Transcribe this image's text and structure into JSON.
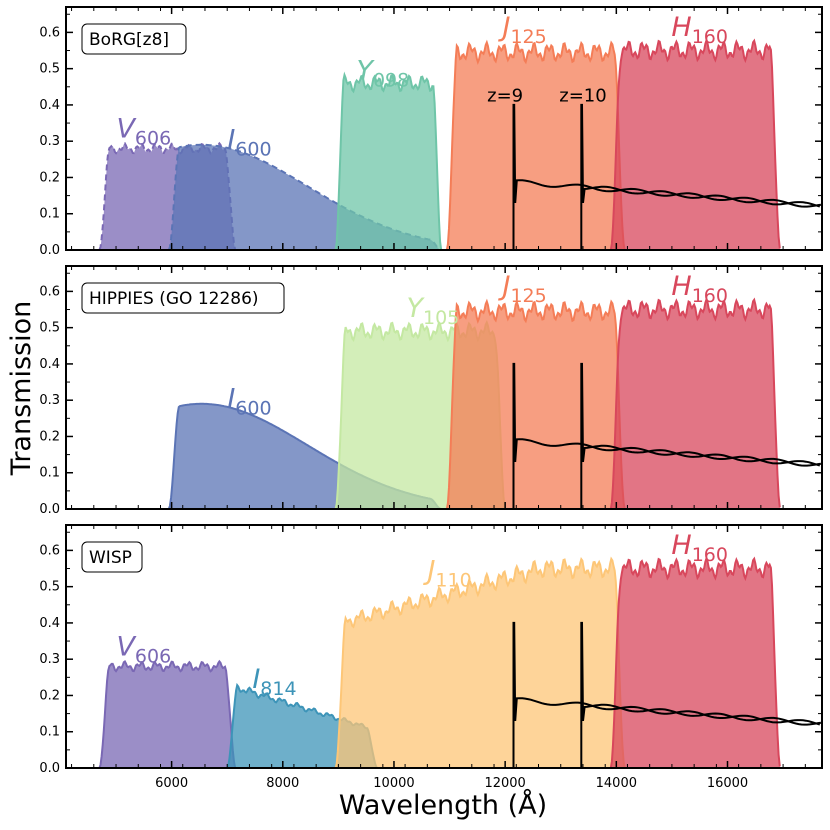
{
  "figure": {
    "xlabel": "Wavelength (Å)",
    "ylabel": "Transmission"
  },
  "colors": {
    "V606": "#7a68b4",
    "I600": "#5b74b5",
    "I814": "#3d94b8",
    "Y098": "#6fc5a8",
    "Y105": "#c4e8a2",
    "J125": "#f47d57",
    "J110": "#fdc677",
    "H160": "#d8475c",
    "spectrum": "#000000"
  },
  "chart_data": [
    {
      "type": "area",
      "panel_label": "BoRG[z8]",
      "xlim": [
        4100,
        17700
      ],
      "ylim": [
        0,
        0.67
      ],
      "xticks": [
        6000,
        8000,
        10000,
        12000,
        14000,
        16000
      ],
      "yticks": [
        0.0,
        0.1,
        0.2,
        0.3,
        0.4,
        0.5,
        0.6
      ],
      "series": [
        {
          "name": "V606",
          "range": [
            4700,
            7150
          ],
          "peak": 0.28,
          "shape": "flat",
          "dashed": true
        },
        {
          "name": "I600",
          "range": [
            5950,
            10850
          ],
          "peak": 0.29,
          "shape": "broad",
          "dashed": true
        },
        {
          "name": "Y098",
          "range": [
            8950,
            10850
          ],
          "peak": 0.46,
          "shape": "flat"
        },
        {
          "name": "J125",
          "range": [
            10950,
            14150
          ],
          "peak": 0.545,
          "shape": "flat"
        },
        {
          "name": "H160",
          "range": [
            13900,
            16950
          ],
          "peak": 0.55,
          "shape": "flat"
        }
      ],
      "labels": [
        {
          "key": "V606",
          "base": "V",
          "sub": "606",
          "x": 5500,
          "y": 0.31
        },
        {
          "key": "I600",
          "base": "I",
          "sub": "600",
          "x": 7400,
          "y": 0.28
        },
        {
          "key": "Y098",
          "base": "Y",
          "sub": "098",
          "x": 9800,
          "y": 0.47
        },
        {
          "key": "J125",
          "base": "J",
          "sub": "125",
          "x": 12350,
          "y": 0.59
        },
        {
          "key": "H160",
          "base": "H",
          "sub": "160",
          "x": 15500,
          "y": 0.59
        }
      ],
      "redshift_labels": [
        {
          "text": "z=9",
          "x": 12000,
          "y": 0.41
        },
        {
          "text": "z=10",
          "x": 13400,
          "y": 0.41
        }
      ]
    },
    {
      "type": "area",
      "panel_label": "HIPPIES (GO 12286)",
      "xlim": [
        4100,
        17700
      ],
      "ylim": [
        0,
        0.67
      ],
      "xticks": [
        6000,
        8000,
        10000,
        12000,
        14000,
        16000
      ],
      "yticks": [
        0.0,
        0.1,
        0.2,
        0.3,
        0.4,
        0.5,
        0.6
      ],
      "series": [
        {
          "name": "I600",
          "range": [
            5950,
            10850
          ],
          "peak": 0.29,
          "shape": "broad"
        },
        {
          "name": "Y105",
          "range": [
            8950,
            12000
          ],
          "peak": 0.49,
          "shape": "flat"
        },
        {
          "name": "J125",
          "range": [
            10950,
            14150
          ],
          "peak": 0.545,
          "shape": "flat"
        },
        {
          "name": "H160",
          "range": [
            13900,
            16950
          ],
          "peak": 0.55,
          "shape": "flat"
        }
      ],
      "labels": [
        {
          "key": "I600",
          "base": "I",
          "sub": "600",
          "x": 7400,
          "y": 0.28
        },
        {
          "key": "Y105",
          "base": "Y",
          "sub": "105",
          "x": 10700,
          "y": 0.53
        },
        {
          "key": "J125",
          "base": "J",
          "sub": "125",
          "x": 12350,
          "y": 0.59
        },
        {
          "key": "H160",
          "base": "H",
          "sub": "160",
          "x": 15500,
          "y": 0.59
        }
      ],
      "redshift_labels": []
    },
    {
      "type": "area",
      "panel_label": "WISP",
      "xlim": [
        4100,
        17700
      ],
      "ylim": [
        0,
        0.67
      ],
      "xticks": [
        6000,
        8000,
        10000,
        12000,
        14000,
        16000
      ],
      "yticks": [
        0.0,
        0.1,
        0.2,
        0.3,
        0.4,
        0.5,
        0.6
      ],
      "series": [
        {
          "name": "V606",
          "range": [
            4700,
            7150
          ],
          "peak": 0.28,
          "shape": "flat"
        },
        {
          "name": "I814",
          "range": [
            7000,
            9700
          ],
          "peak": 0.23,
          "shape": "decline"
        },
        {
          "name": "J110",
          "range": [
            8950,
            14150
          ],
          "peak": 0.55,
          "shape": "rising"
        },
        {
          "name": "H160",
          "range": [
            13900,
            16950
          ],
          "peak": 0.55,
          "shape": "flat"
        }
      ],
      "labels": [
        {
          "key": "V606",
          "base": "V",
          "sub": "606",
          "x": 5500,
          "y": 0.31
        },
        {
          "key": "I814",
          "base": "I",
          "sub": "814",
          "x": 7850,
          "y": 0.22
        },
        {
          "key": "J110",
          "base": "J",
          "sub": "110",
          "x": 11000,
          "y": 0.52
        },
        {
          "key": "H160",
          "base": "H",
          "sub": "160",
          "x": 15500,
          "y": 0.59
        }
      ],
      "redshift_labels": []
    }
  ]
}
